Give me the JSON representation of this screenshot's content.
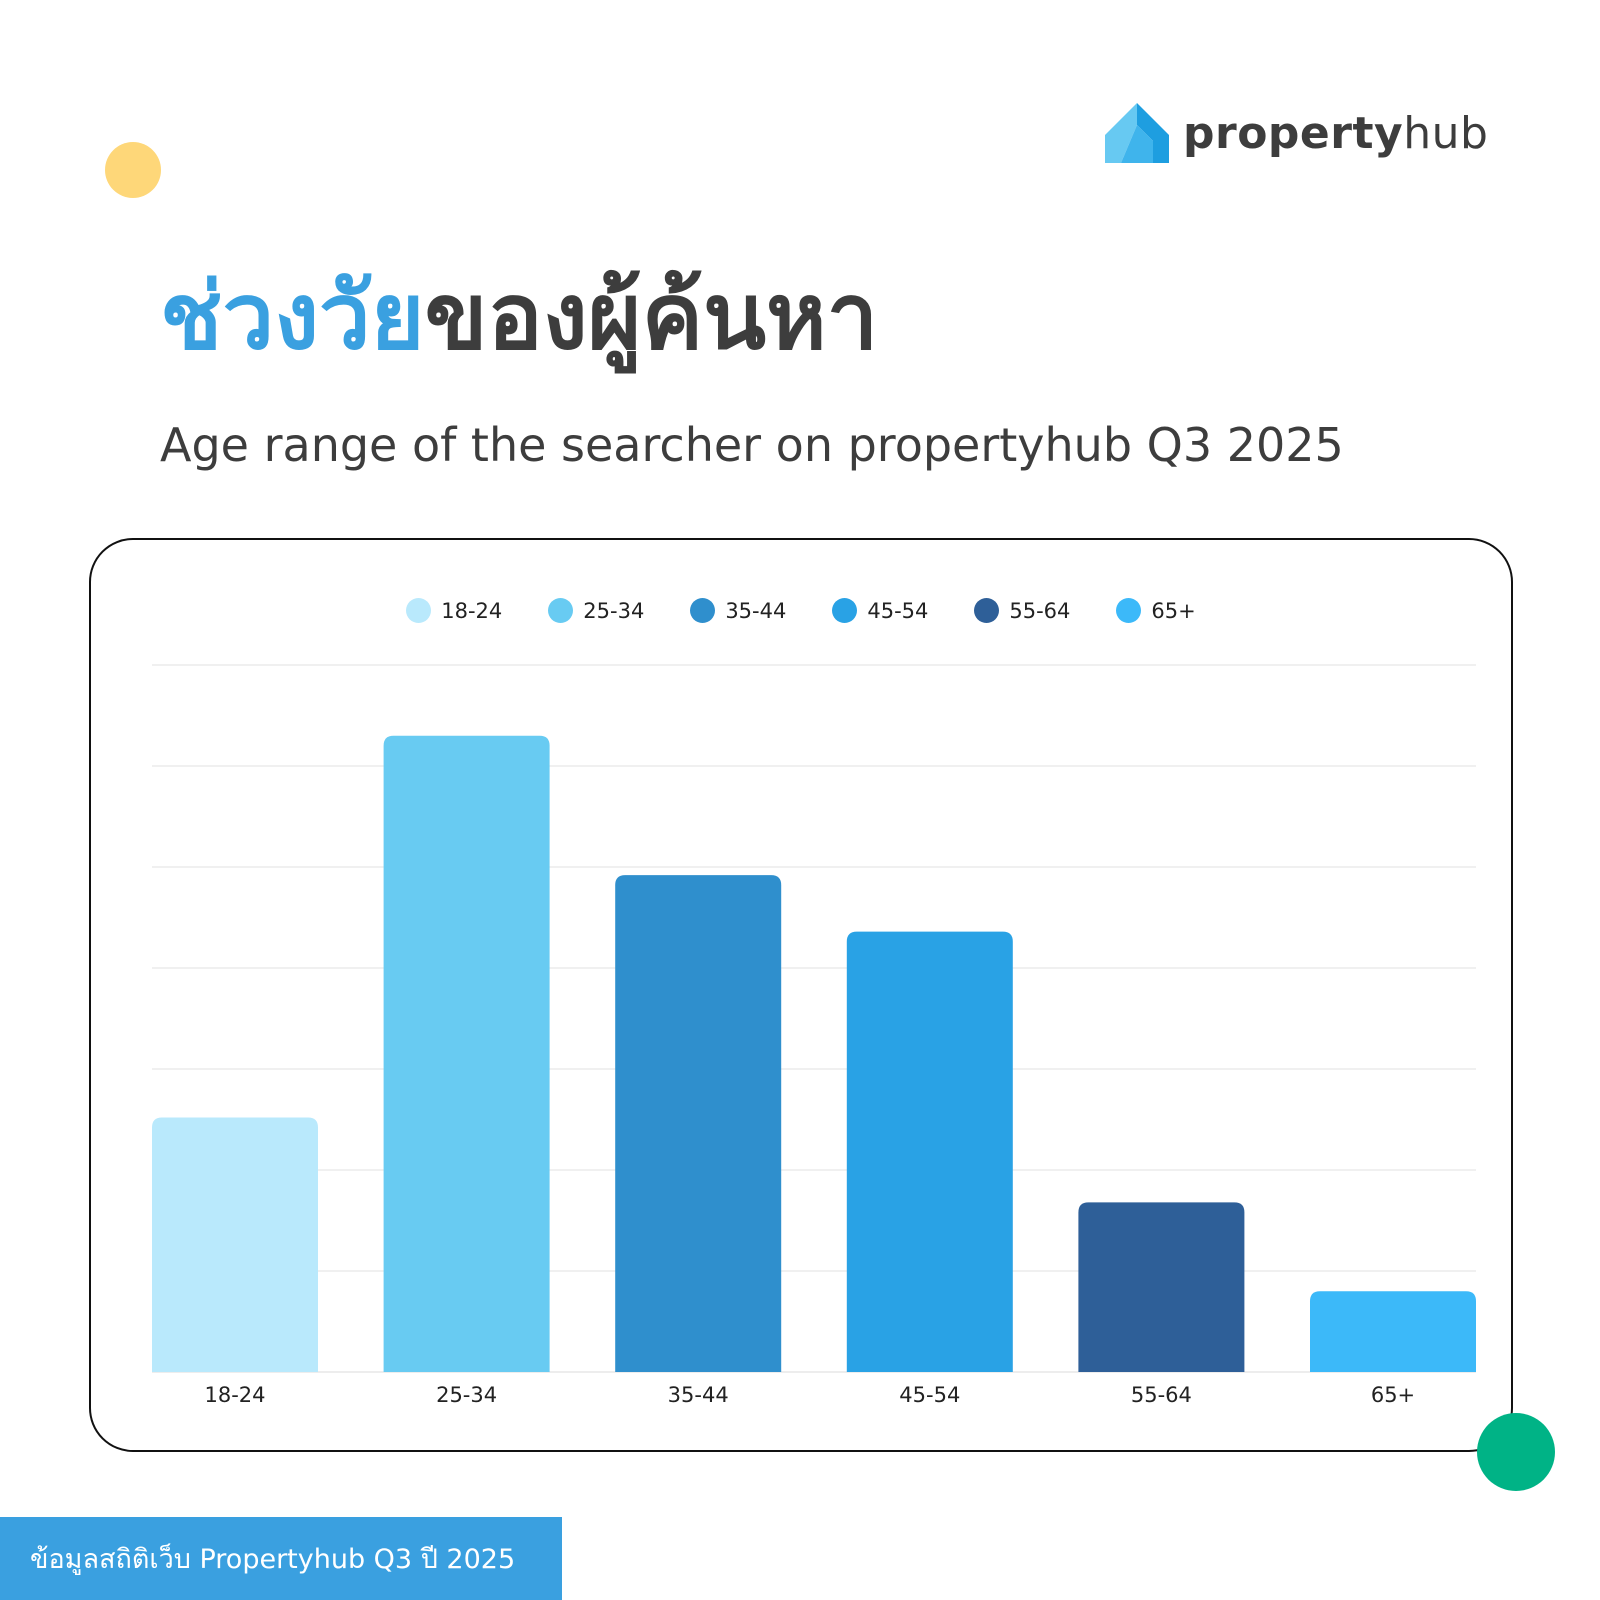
{
  "brand": {
    "logo_bold": "property",
    "logo_light": "hub",
    "logo_icon": "house-roof-icon",
    "colors": {
      "blue": "#3aa0e0",
      "dark": "#3d3d3d",
      "yellow": "#fed779",
      "green": "#00b386"
    }
  },
  "header": {
    "title_blue": "ช่วงวัย",
    "title_dark": "ของผู้ค้นหา",
    "subtitle": "Age range of the searcher on propertyhub Q3 2025"
  },
  "footer": {
    "text": "ข้อมูลสถิติเว็บ Propertyhub Q3 ปี 2025"
  },
  "chart_data": {
    "type": "bar",
    "title": "",
    "xlabel": "",
    "ylabel": "",
    "categories": [
      "18-24",
      "25-34",
      "35-44",
      "45-54",
      "55-64",
      "65+"
    ],
    "values": [
      12.6,
      31.5,
      24.6,
      21.8,
      8.4,
      4.0
    ],
    "colors": [
      "#b9e9fc",
      "#68cbf2",
      "#2f8fcd",
      "#29a2e5",
      "#2e5f98",
      "#3cb9f9"
    ],
    "ylim": [
      0,
      35
    ],
    "y_ticks": [
      0,
      5,
      10,
      15,
      20,
      25,
      30,
      35
    ],
    "y_tick_labels_shown": false,
    "grid": true,
    "legend": {
      "position": "top-center",
      "entries": [
        "18-24",
        "25-34",
        "35-44",
        "45-54",
        "55-64",
        "65+"
      ]
    }
  }
}
